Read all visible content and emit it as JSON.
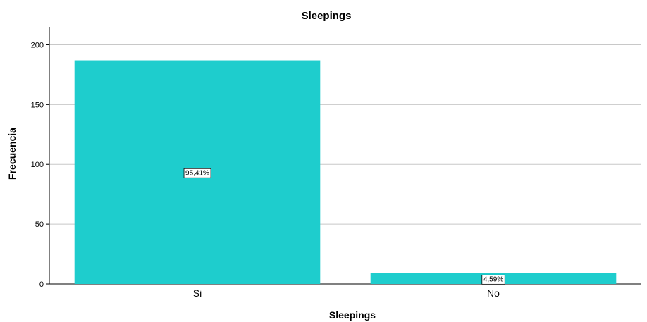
{
  "chart_data": {
    "type": "bar",
    "title": "Sleepings",
    "xlabel": "Sleepings",
    "ylabel": "Frecuencia",
    "categories": [
      "Si",
      "No"
    ],
    "values": [
      187,
      9
    ],
    "data_labels": [
      "95,41%",
      "4,59%"
    ],
    "ylim": [
      0,
      215
    ],
    "yticks": [
      0,
      50,
      100,
      150,
      200
    ],
    "grid": "horizontal",
    "bar_color": "#1ECDCD"
  }
}
